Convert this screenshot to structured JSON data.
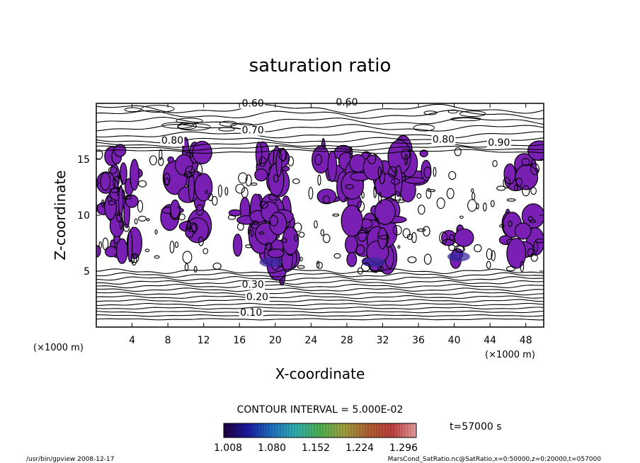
{
  "chart_data": {
    "type": "contour",
    "title": "saturation ratio",
    "xlabel": "X-coordinate",
    "ylabel": "Z-coordinate",
    "x_unit_left": "(×1000 m)",
    "x_unit_right": "(×1000 m)",
    "xlim": [
      0,
      50
    ],
    "ylim": [
      0,
      20
    ],
    "x_ticks": [
      4,
      8,
      12,
      16,
      20,
      24,
      28,
      32,
      36,
      40,
      44,
      48
    ],
    "x_tick_labels": [
      "4",
      "8",
      "12",
      "16",
      "20",
      "24",
      "28",
      "32",
      "36",
      "40",
      "44",
      "48"
    ],
    "y_ticks": [
      5,
      10,
      15
    ],
    "y_tick_labels": [
      "5",
      "10",
      "15"
    ],
    "contour_interval_text": "CONTOUR INTERVAL = 5.000E-02",
    "contour_labels": [
      {
        "text": "0.60",
        "x": 17.5,
        "z": 19.7
      },
      {
        "text": "0.60",
        "x": 28.0,
        "z": 19.8
      },
      {
        "text": "0.70",
        "x": 17.5,
        "z": 17.3
      },
      {
        "text": "0.80",
        "x": 8.5,
        "z": 16.4
      },
      {
        "text": "0.80",
        "x": 38.8,
        "z": 16.5
      },
      {
        "text": "0.90",
        "x": 45.0,
        "z": 16.2
      },
      {
        "text": "0.30",
        "x": 17.5,
        "z": 3.5
      },
      {
        "text": "0.20",
        "x": 18.0,
        "z": 2.4
      },
      {
        "text": "0.10",
        "x": 17.3,
        "z": 1.0
      }
    ],
    "shaded_regions": [
      {
        "x": [
          0.0,
          2.5
        ],
        "z": [
          6.0,
          15.8
        ]
      },
      {
        "x": [
          2.5,
          4.5
        ],
        "z": [
          6.5,
          15.8
        ]
      },
      {
        "x": [
          8.0,
          12.0
        ],
        "z": [
          8.0,
          15.8
        ]
      },
      {
        "x": [
          15.5,
          22.0
        ],
        "z": [
          5.0,
          11.0
        ]
      },
      {
        "x": [
          18.0,
          21.0
        ],
        "z": [
          9.0,
          15.8
        ]
      },
      {
        "x": [
          25.0,
          28.0
        ],
        "z": [
          11.0,
          15.8
        ]
      },
      {
        "x": [
          28.0,
          33.5
        ],
        "z": [
          5.0,
          11.5
        ]
      },
      {
        "x": [
          28.5,
          37.0
        ],
        "z": [
          12.0,
          15.8
        ]
      },
      {
        "x": [
          39.0,
          41.5
        ],
        "z": [
          6.0,
          9.0
        ]
      },
      {
        "x": [
          45.5,
          49.5
        ],
        "z": [
          6.5,
          10.0
        ]
      },
      {
        "x": [
          46.0,
          49.8
        ],
        "z": [
          13.0,
          15.8
        ]
      }
    ],
    "colorbar": {
      "tick_labels": [
        "1.008",
        "1.080",
        "1.152",
        "1.224",
        "1.296"
      ],
      "colors": [
        "#200040",
        "#1a1aa0",
        "#2070c0",
        "#30b0b0",
        "#50b050",
        "#a0a040",
        "#b06030",
        "#c04040",
        "#e8a0a0"
      ]
    },
    "shade_color": "#7a1fb4",
    "grid": false
  },
  "annotation_time": "t=57000 s",
  "footer_left": "/usr/bin/gpview  2008-12-17",
  "footer_right": "MarsCond_SatRatio.nc@SatRatio,x=0:50000,z=0:20000,t=057000"
}
